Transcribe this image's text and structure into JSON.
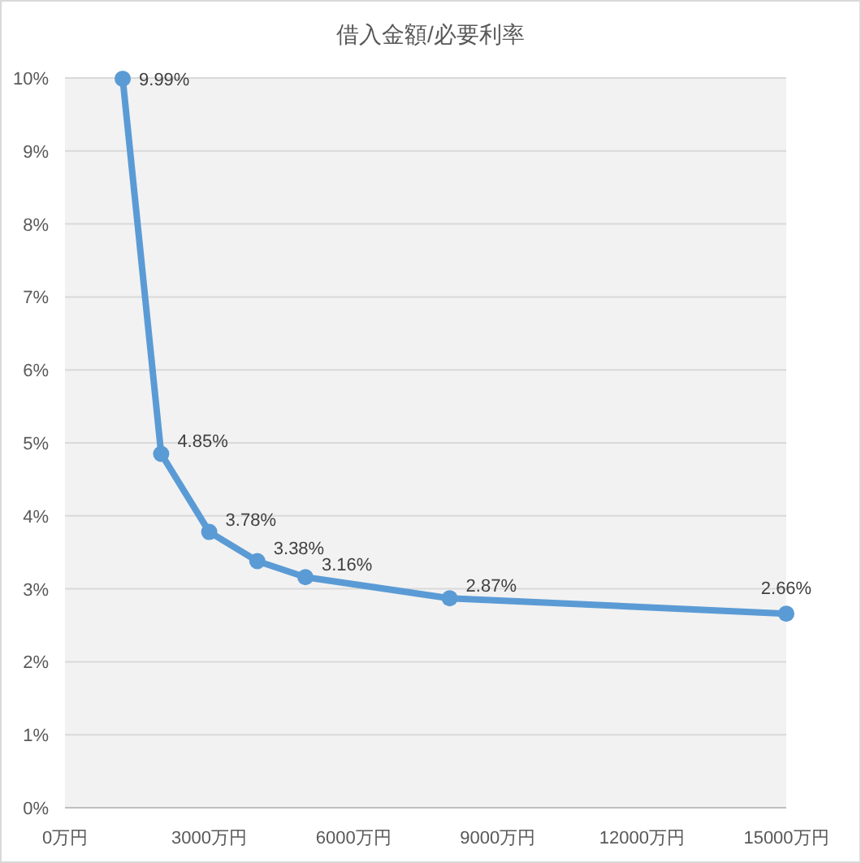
{
  "chart_data": {
    "type": "line",
    "title": "借入金額/必要利率",
    "x": [
      1200,
      2000,
      3000,
      4000,
      5000,
      8000,
      15000
    ],
    "series": [
      {
        "color": "#5b9bd5",
        "values": [
          9.99,
          4.85,
          3.78,
          3.38,
          3.16,
          2.87,
          2.66
        ],
        "value_labels": [
          "9.99%",
          "4.85%",
          "3.78%",
          "3.38%",
          "3.16%",
          "2.87%",
          "2.66%"
        ]
      }
    ],
    "xlim": [
      0,
      15000
    ],
    "xticks": [
      {
        "value": 0,
        "label": "0万円"
      },
      {
        "value": 3000,
        "label": "3000万円"
      },
      {
        "value": 6000,
        "label": "6000万円"
      },
      {
        "value": 9000,
        "label": "9000万円"
      },
      {
        "value": 12000,
        "label": "12000万円"
      },
      {
        "value": 15000,
        "label": "15000万円"
      }
    ],
    "ylim": [
      0,
      10
    ],
    "yticks": [
      {
        "value": 0,
        "label": "0%"
      },
      {
        "value": 1,
        "label": "1%"
      },
      {
        "value": 2,
        "label": "2%"
      },
      {
        "value": 3,
        "label": "3%"
      },
      {
        "value": 4,
        "label": "4%"
      },
      {
        "value": 5,
        "label": "5%"
      },
      {
        "value": 6,
        "label": "6%"
      },
      {
        "value": 7,
        "label": "7%"
      },
      {
        "value": 8,
        "label": "8%"
      },
      {
        "value": 9,
        "label": "9%"
      },
      {
        "value": 10,
        "label": "10%"
      }
    ],
    "grid": "y",
    "marker": "circle",
    "line_style": "solid"
  }
}
